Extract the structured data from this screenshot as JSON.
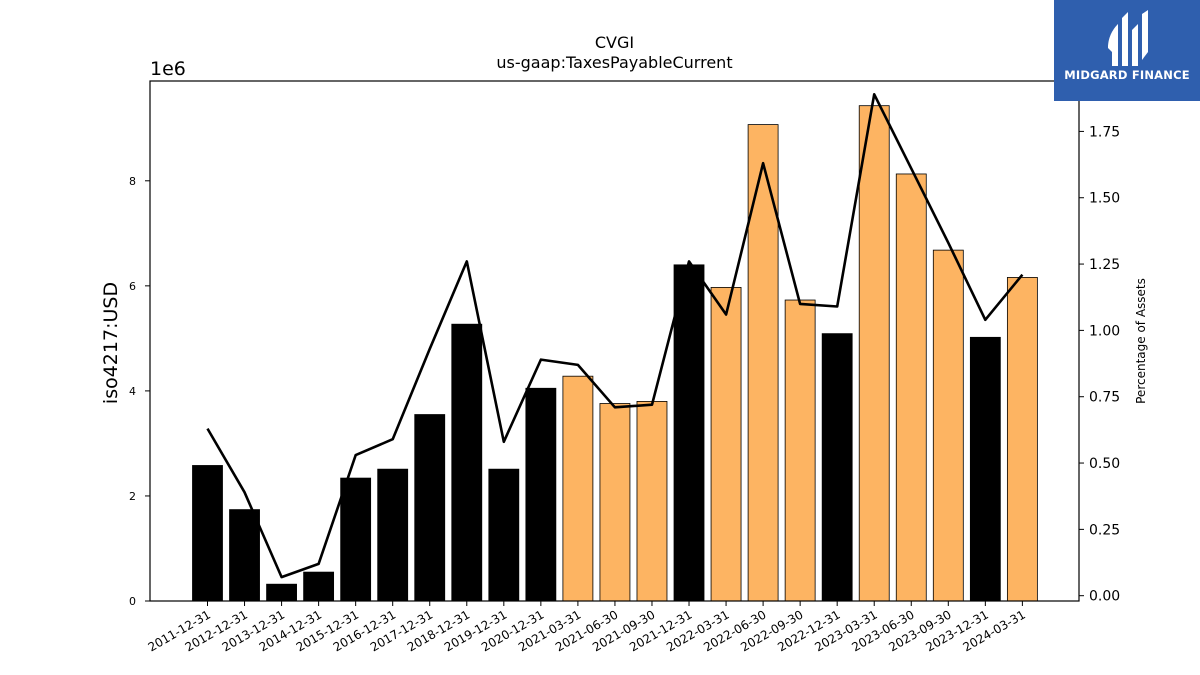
{
  "chart_data": {
    "type": "bar",
    "title": "CVGI",
    "subtitle": "us-gaap:TaxesPayableCurrent",
    "ylabel": "iso4217:USD",
    "y2label": "Percentage of Assets",
    "scale_label": "1e6",
    "ylim": [
      0,
      9.9
    ],
    "y2lim": [
      -0.02,
      1.94
    ],
    "yticks": [
      "0",
      "2",
      "4",
      "6",
      "8"
    ],
    "y2ticks": [
      "0.00",
      "0.25",
      "0.50",
      "0.75",
      "1.00",
      "1.25",
      "1.50",
      "1.75"
    ],
    "categories": [
      "2011-12-31",
      "2012-12-31",
      "2013-12-31",
      "2014-12-31",
      "2015-12-31",
      "2016-12-31",
      "2017-12-31",
      "2018-12-31",
      "2019-12-31",
      "2020-12-31",
      "2021-03-31",
      "2021-06-30",
      "2021-09-30",
      "2021-12-31",
      "2022-03-31",
      "2022-06-30",
      "2022-09-30",
      "2022-12-31",
      "2023-03-31",
      "2023-06-30",
      "2023-09-30",
      "2023-12-31",
      "2024-03-31"
    ],
    "series": [
      {
        "values": [
          2.58,
          1.74,
          0.32,
          0.55,
          2.34,
          2.51,
          3.55,
          5.27,
          2.51,
          4.05,
          4.28,
          3.76,
          3.8,
          6.4,
          5.97,
          9.07,
          5.73,
          5.09,
          9.43,
          8.13,
          6.68,
          5.02,
          6.16
        ],
        "colors": [
          "#000000",
          "#000000",
          "#000000",
          "#000000",
          "#000000",
          "#000000",
          "#000000",
          "#000000",
          "#000000",
          "#000000",
          "#fdb462",
          "#fdb462",
          "#fdb462",
          "#000000",
          "#fdb462",
          "#fdb462",
          "#fdb462",
          "#000000",
          "#fdb462",
          "#fdb462",
          "#fdb462",
          "#000000",
          "#fdb462"
        ]
      },
      {
        "axis": "right",
        "type": "line",
        "values": [
          0.63,
          0.39,
          0.07,
          0.12,
          0.53,
          0.59,
          0.93,
          1.26,
          0.58,
          0.89,
          0.87,
          0.71,
          0.72,
          1.26,
          1.06,
          1.63,
          1.1,
          1.09,
          1.89,
          1.61,
          1.33,
          1.04,
          1.21
        ]
      }
    ]
  },
  "logo": {
    "text": "MIDGARD FINANCE"
  }
}
